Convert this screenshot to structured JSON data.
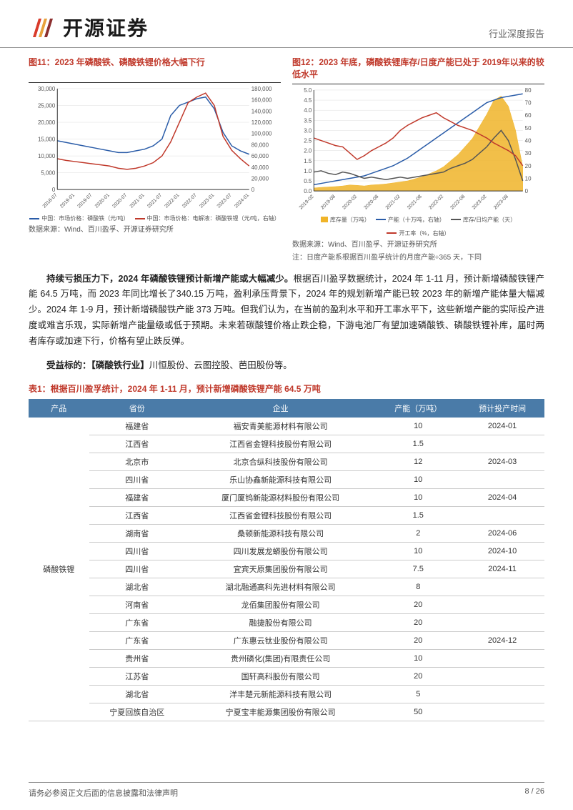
{
  "header": {
    "company_name": "开源证券",
    "doc_type": "行业深度报告",
    "logo_colors": [
      "#d93b2b",
      "#e8a23c",
      "#8c2f2f"
    ]
  },
  "chart11": {
    "title": "图11：2023 年磷酸铁、磷酸铁锂价格大幅下行",
    "type": "line",
    "x_labels": [
      "2018-07",
      "2018-10",
      "2019-01",
      "2019-04",
      "2019-07",
      "2019-10",
      "2020-01",
      "2020-04",
      "2020-07",
      "2020-10",
      "2021-01",
      "2021-04",
      "2021-07",
      "2021-10",
      "2022-01",
      "2022-04",
      "2022-07",
      "2022-10",
      "2023-01",
      "2023-04",
      "2023-07",
      "2023-10",
      "2024-01"
    ],
    "y_left": {
      "min": 0,
      "max": 30000,
      "step": 5000,
      "label_fontsize": 8
    },
    "y_right": {
      "min": 0,
      "max": 180000,
      "step": 20000,
      "label_fontsize": 8
    },
    "series": [
      {
        "name": "中国：市场价格：磷酸铁（元/吨）",
        "color": "#2a5ca8",
        "axis": "left",
        "values": [
          14500,
          14000,
          13500,
          13000,
          12500,
          12000,
          11500,
          11000,
          11000,
          11500,
          12000,
          13000,
          15000,
          22000,
          25000,
          26000,
          27000,
          27500,
          24000,
          17000,
          13000,
          11500,
          10500
        ]
      },
      {
        "name": "中国：市场价格：电解液：磷酸铁锂（元/吨，右轴）",
        "color": "#c0392b",
        "axis": "right",
        "values": [
          55000,
          52000,
          50000,
          48000,
          46000,
          44000,
          42000,
          38000,
          36000,
          38000,
          42000,
          48000,
          60000,
          85000,
          120000,
          155000,
          165000,
          172000,
          150000,
          95000,
          70000,
          55000,
          42000
        ]
      }
    ],
    "background_color": "#ffffff",
    "grid_color": "#dddddd",
    "source": "数据来源：Wind、百川盈孚、开源证券研究所"
  },
  "chart12": {
    "title": "图12：2023 年底，磷酸铁锂库存/日度产能已处于 2019年以来的较低水平",
    "type": "combo",
    "x_labels": [
      "2019-02",
      "2019-04",
      "2019-06",
      "2019-08",
      "2019-10",
      "2019-12",
      "2020-02",
      "2020-04",
      "2020-06",
      "2020-08",
      "2020-10",
      "2020-12",
      "2021-02",
      "2021-04",
      "2021-06",
      "2021-08",
      "2021-10",
      "2021-12",
      "2022-02",
      "2022-04",
      "2022-06",
      "2022-08",
      "2022-10",
      "2022-12",
      "2023-02",
      "2023-04",
      "2023-06",
      "2023-08",
      "2023-10",
      "2023-12"
    ],
    "y_left": {
      "min": 0,
      "max": 5.0,
      "step": 0.5,
      "label_fontsize": 8
    },
    "y_right": {
      "min": 0,
      "max": 80,
      "step": 10,
      "label_fontsize": 8
    },
    "series": [
      {
        "name": "库存量（万吨）",
        "type": "area",
        "color": "#f0b429",
        "axis": "left",
        "values": [
          0.15,
          0.18,
          0.2,
          0.22,
          0.25,
          0.3,
          0.28,
          0.25,
          0.3,
          0.32,
          0.35,
          0.4,
          0.45,
          0.5,
          0.6,
          0.7,
          0.85,
          1.0,
          1.2,
          1.5,
          1.8,
          2.2,
          2.6,
          3.2,
          3.8,
          4.5,
          4.7,
          4.2,
          3.0,
          1.2
        ]
      },
      {
        "name": "产能（十万吨，右轴）",
        "type": "line",
        "color": "#2a5ca8",
        "axis": "right",
        "values": [
          5,
          6,
          7,
          8,
          9,
          10,
          11,
          12,
          14,
          16,
          18,
          20,
          23,
          26,
          30,
          34,
          38,
          42,
          46,
          50,
          54,
          58,
          62,
          66,
          70,
          72,
          74,
          75,
          76,
          77
        ]
      },
      {
        "name": "库存/日均产能（天）",
        "type": "line",
        "color": "#555555",
        "axis": "right",
        "values": [
          15,
          16,
          14,
          13,
          15,
          14,
          12,
          10,
          11,
          10,
          9,
          10,
          11,
          10,
          11,
          12,
          13,
          14,
          15,
          18,
          20,
          22,
          25,
          30,
          35,
          42,
          48,
          40,
          25,
          8
        ]
      },
      {
        "name": "开工率（%，右轴）",
        "type": "line",
        "color": "#c0392b",
        "axis": "right",
        "values": [
          42,
          40,
          38,
          36,
          35,
          30,
          25,
          28,
          32,
          35,
          38,
          42,
          48,
          52,
          55,
          58,
          60,
          62,
          58,
          55,
          52,
          50,
          48,
          45,
          42,
          38,
          35,
          32,
          28,
          20
        ]
      }
    ],
    "background_color": "#ffffff",
    "grid_color": "#dddddd",
    "source": "数据来源：Wind、百川盈孚、开源证券研究所",
    "note": "注：日度产能系根据百川盈孚统计的月度产能÷365 天，下同"
  },
  "paragraph1": {
    "bold_lead": "持续亏损压力下，2024 年磷酸铁锂预计新增产能或大幅减少。",
    "text": "根据百川盈孚数据统计，2024 年 1-11 月，预计新增磷酸铁锂产能 64.5 万吨，而 2023 年同比增长了340.15 万吨，盈利承压背景下，2024 年的规划新增产能已较 2023 年的新增产能体量大幅减少。2024 年 1-9 月，预计新增磷酸铁产能 373 万吨。但我们认为，在当前的盈利水平和开工率水平下，这些新增产能的实际投产进度或难言乐观，实际新增产能量级或低于预期。未来若碳酸锂价格止跌企稳，下游电池厂有望加速磷酸铁、磷酸铁锂补库，届时两者库存或加速下行，价格有望止跌反弹。"
  },
  "paragraph2": {
    "bold_lead": "受益标的：【磷酸铁行业】",
    "text": "川恒股份、云图控股、芭田股份等。"
  },
  "table1": {
    "title": "表1：根据百川盈孚统计，2024 年 1-11 月，预计新增磷酸铁锂产能 64.5 万吨",
    "header_bg": "#4a7ba8",
    "header_color": "#ffffff",
    "columns": [
      "产品",
      "省份",
      "企业",
      "产能（万吨）",
      "预计投产时间"
    ],
    "product_label": "磷酸铁锂",
    "rows": [
      {
        "province": "福建省",
        "company": "福安青美能源材料有限公司",
        "capacity": "10",
        "time": "2024-01"
      },
      {
        "province": "江西省",
        "company": "江西省金锂科技股份有限公司",
        "capacity": "1.5",
        "time": ""
      },
      {
        "province": "北京市",
        "company": "北京合纵科技股份有限公司",
        "capacity": "12",
        "time": "2024-03"
      },
      {
        "province": "四川省",
        "company": "乐山协鑫新能源科技有限公司",
        "capacity": "10",
        "time": ""
      },
      {
        "province": "福建省",
        "company": "厦门厦钨新能源材料股份有限公司",
        "capacity": "10",
        "time": "2024-04"
      },
      {
        "province": "江西省",
        "company": "江西省金锂科技股份有限公司",
        "capacity": "1.5",
        "time": ""
      },
      {
        "province": "湖南省",
        "company": "桑顿新能源科技有限公司",
        "capacity": "2",
        "time": "2024-06"
      },
      {
        "province": "四川省",
        "company": "四川发展龙蟒股份有限公司",
        "capacity": "10",
        "time": "2024-10"
      },
      {
        "province": "四川省",
        "company": "宜宾天原集团股份有限公司",
        "capacity": "7.5",
        "time": "2024-11"
      },
      {
        "province": "湖北省",
        "company": "湖北融通高科先进材料有限公司",
        "capacity": "8",
        "time": ""
      },
      {
        "province": "河南省",
        "company": "龙佰集团股份有限公司",
        "capacity": "20",
        "time": ""
      },
      {
        "province": "广东省",
        "company": "融捷股份有限公司",
        "capacity": "20",
        "time": ""
      },
      {
        "province": "广东省",
        "company": "广东惠云钛业股份有限公司",
        "capacity": "20",
        "time": "2024-12"
      },
      {
        "province": "贵州省",
        "company": "贵州磷化(集团)有限责任公司",
        "capacity": "10",
        "time": ""
      },
      {
        "province": "江苏省",
        "company": "国轩高科股份有限公司",
        "capacity": "20",
        "time": ""
      },
      {
        "province": "湖北省",
        "company": "洋丰楚元新能源科技有限公司",
        "capacity": "5",
        "time": ""
      },
      {
        "province": "宁夏回族自治区",
        "company": "宁夏宝丰能源集团股份有限公司",
        "capacity": "50",
        "time": ""
      }
    ]
  },
  "footer": {
    "disclaimer": "请务必参阅正文后面的信息披露和法律声明",
    "page": "8 / 26"
  }
}
